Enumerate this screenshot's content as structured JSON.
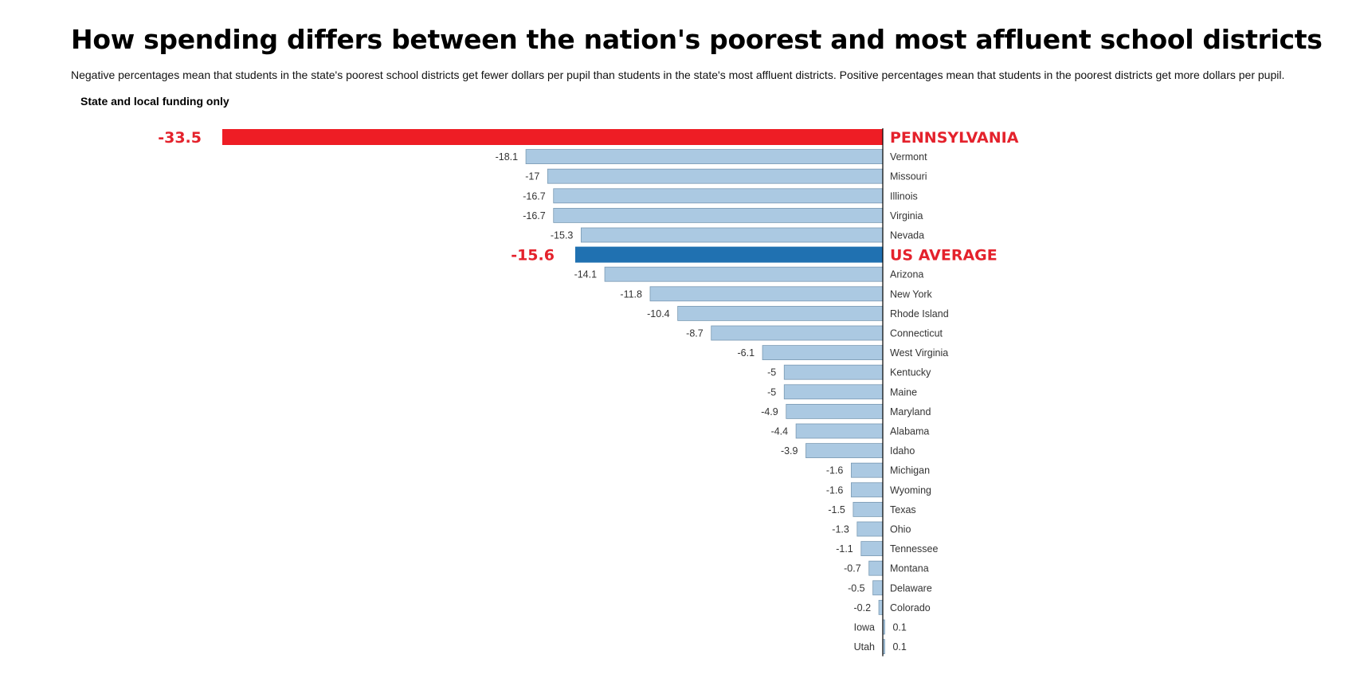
{
  "chart_data": {
    "type": "bar",
    "orientation": "horizontal",
    "title": "How spending differs between the nation's poorest and most affluent school districts",
    "subtitle": "Negative percentages mean that students in the state's poorest school districts get fewer dollars per pupil than students in the state's most affluent districts. Positive percentages mean that students in the poorest districts get more dollars per pupil.",
    "annotation": "State and local funding only",
    "xlim": [
      -33.5,
      0
    ],
    "grid": false,
    "colors": {
      "default_bar": "#abc9e2",
      "default_bar_stroke": "#7a9ab3",
      "highlight_state_bar": "#ee1d25",
      "us_average_bar": "#2071b1",
      "highlight_text": "#e4222c",
      "axis": "#000000"
    },
    "categories": [
      "PENNSYLVANIA",
      "Vermont",
      "Missouri",
      "Illinois",
      "Virginia",
      "Nevada",
      "US AVERAGE",
      "Arizona",
      "New York",
      "Rhode Island",
      "Connecticut",
      "West Virginia",
      "Kentucky",
      "Maine",
      "Maryland",
      "Alabama",
      "Idaho",
      "Michigan",
      "Wyoming",
      "Texas",
      "Ohio",
      "Tennessee",
      "Montana",
      "Delaware",
      "Colorado",
      "Iowa",
      "Utah"
    ],
    "values": [
      -33.5,
      -18.1,
      -17,
      -16.7,
      -16.7,
      -15.3,
      -15.6,
      -14.1,
      -11.8,
      -10.4,
      -8.7,
      -6.1,
      -5,
      -5,
      -4.9,
      -4.4,
      -3.9,
      -1.6,
      -1.6,
      -1.5,
      -1.3,
      -1.1,
      -0.7,
      -0.5,
      -0.2,
      0.1,
      0.1
    ],
    "value_labels": [
      "-33.5",
      "-18.1",
      "-17",
      "-16.7",
      "-16.7",
      "-15.3",
      "-15.6",
      "-14.1",
      "-11.8",
      "-10.4",
      "-8.7",
      "-6.1",
      "-5",
      "-5",
      "-4.9",
      "-4.4",
      "-3.9",
      "-1.6",
      "-1.6",
      "-1.5",
      "-1.3",
      "-1.1",
      "-0.7",
      "-0.5",
      "-0.2",
      "0.1",
      "0.1"
    ],
    "highlights": {
      "PENNSYLVANIA": "state",
      "US AVERAGE": "average"
    }
  }
}
